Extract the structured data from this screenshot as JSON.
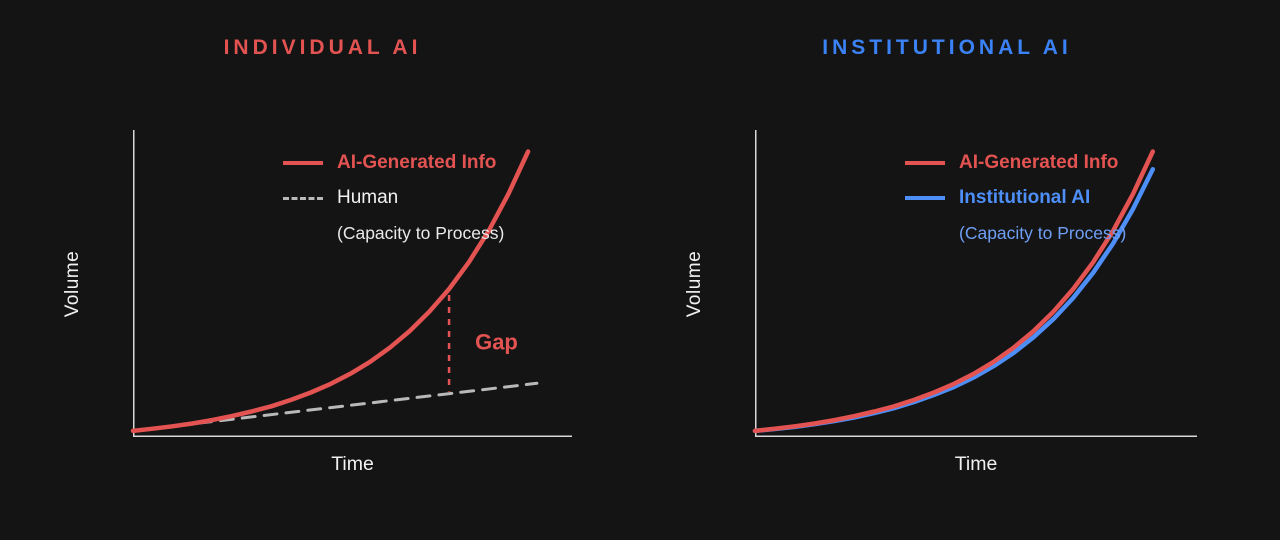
{
  "colors": {
    "background": "#141414",
    "axis": "#d8d8d8",
    "text": "#f1f1f1",
    "red": "#e25352",
    "blue": "#4d8ef7",
    "gray": "#b9b9b9"
  },
  "chart_data": [
    {
      "type": "line",
      "title": "INDIVIDUAL AI",
      "title_color": "#e25352",
      "xlabel": "Time",
      "ylabel": "Volume",
      "x_range": [
        0,
        1
      ],
      "y_range": [
        0,
        1
      ],
      "grid": false,
      "legend_position": "top-left-inside",
      "series": [
        {
          "name": "AI-Generated Info",
          "color": "#e25352",
          "style": "solid",
          "width": 4.5,
          "points": [
            [
              0,
              0.02
            ],
            [
              0.045,
              0.027
            ],
            [
              0.09,
              0.035
            ],
            [
              0.135,
              0.044
            ],
            [
              0.18,
              0.055
            ],
            [
              0.225,
              0.068
            ],
            [
              0.27,
              0.083
            ],
            [
              0.315,
              0.1
            ],
            [
              0.36,
              0.121
            ],
            [
              0.405,
              0.145
            ],
            [
              0.45,
              0.173
            ],
            [
              0.495,
              0.206
            ],
            [
              0.54,
              0.245
            ],
            [
              0.585,
              0.291
            ],
            [
              0.63,
              0.345
            ],
            [
              0.675,
              0.408
            ],
            [
              0.72,
              0.482
            ],
            [
              0.765,
              0.569
            ],
            [
              0.81,
              0.671
            ],
            [
              0.855,
              0.791
            ],
            [
              0.9,
              0.93
            ]
          ]
        },
        {
          "name": "Human (Capacity to Process)",
          "color": "#b9b9b9",
          "style": "dashed",
          "width": 3,
          "points": [
            [
              0,
              0.02
            ],
            [
              0.92,
              0.175
            ]
          ]
        }
      ],
      "annotations": [
        {
          "type": "gap-line",
          "x": 0.72,
          "label": "Gap",
          "color": "#e25352"
        }
      ],
      "legend": [
        {
          "label": "AI-Generated Info",
          "color": "#e25352",
          "bold": true,
          "swatch": "solid",
          "swatch_color": "#e25352"
        },
        {
          "label": "Human",
          "color": "#f1f1f1",
          "bold": false,
          "swatch": "dashed",
          "swatch_color": "#b9b9b9"
        },
        {
          "label": "(Capacity to Process)",
          "color": "#e9e9e9",
          "bold": false,
          "swatch": "none"
        }
      ]
    },
    {
      "type": "line",
      "title": "INSTITUTIONAL AI",
      "title_color": "#3b82f6",
      "xlabel": "Time",
      "ylabel": "Volume",
      "x_range": [
        0,
        1
      ],
      "y_range": [
        0,
        1
      ],
      "grid": false,
      "legend_position": "top-left-inside",
      "series": [
        {
          "name": "AI-Generated Info",
          "color": "#e25352",
          "style": "solid",
          "width": 4.5,
          "points": [
            [
              0,
              0.02
            ],
            [
              0.045,
              0.027
            ],
            [
              0.09,
              0.035
            ],
            [
              0.135,
              0.044
            ],
            [
              0.18,
              0.055
            ],
            [
              0.225,
              0.068
            ],
            [
              0.27,
              0.083
            ],
            [
              0.315,
              0.1
            ],
            [
              0.36,
              0.121
            ],
            [
              0.405,
              0.145
            ],
            [
              0.45,
              0.173
            ],
            [
              0.495,
              0.206
            ],
            [
              0.54,
              0.245
            ],
            [
              0.585,
              0.291
            ],
            [
              0.63,
              0.345
            ],
            [
              0.675,
              0.408
            ],
            [
              0.72,
              0.482
            ],
            [
              0.765,
              0.569
            ],
            [
              0.81,
              0.671
            ],
            [
              0.855,
              0.791
            ],
            [
              0.9,
              0.93
            ]
          ]
        },
        {
          "name": "Institutional AI (Capacity to Process)",
          "color": "#4d8ef7",
          "style": "solid",
          "width": 4.5,
          "points": [
            [
              0,
              0.02
            ],
            [
              0.045,
              0.026
            ],
            [
              0.09,
              0.033
            ],
            [
              0.135,
              0.042
            ],
            [
              0.18,
              0.052
            ],
            [
              0.225,
              0.064
            ],
            [
              0.27,
              0.078
            ],
            [
              0.315,
              0.094
            ],
            [
              0.36,
              0.114
            ],
            [
              0.405,
              0.137
            ],
            [
              0.45,
              0.163
            ],
            [
              0.495,
              0.194
            ],
            [
              0.54,
              0.231
            ],
            [
              0.585,
              0.274
            ],
            [
              0.63,
              0.325
            ],
            [
              0.675,
              0.384
            ],
            [
              0.72,
              0.453
            ],
            [
              0.765,
              0.535
            ],
            [
              0.81,
              0.63
            ],
            [
              0.855,
              0.742
            ],
            [
              0.9,
              0.872
            ]
          ]
        }
      ],
      "annotations": [],
      "legend": [
        {
          "label": "AI-Generated Info",
          "color": "#e25352",
          "bold": true,
          "swatch": "solid",
          "swatch_color": "#e25352"
        },
        {
          "label": "Institutional AI",
          "color": "#4d8ef7",
          "bold": true,
          "swatch": "solid",
          "swatch_color": "#4d8ef7"
        },
        {
          "label": "(Capacity to Process)",
          "color": "#6f9ff5",
          "bold": false,
          "swatch": "none"
        }
      ]
    }
  ]
}
